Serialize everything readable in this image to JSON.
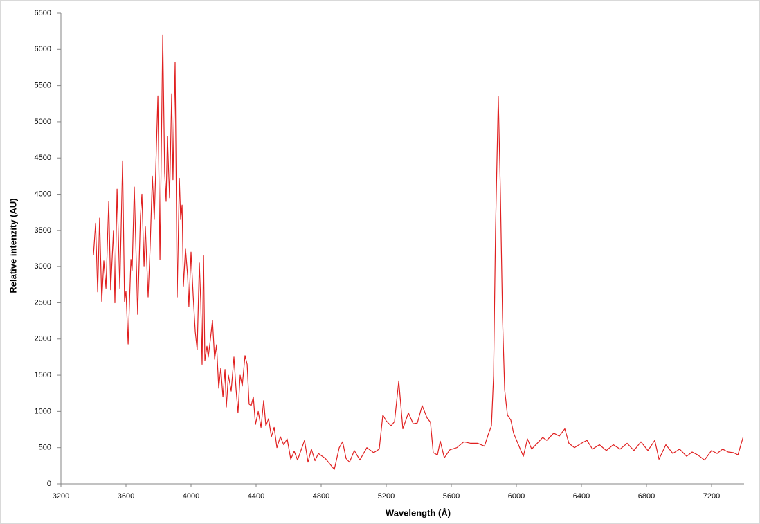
{
  "chart_data": {
    "type": "line",
    "x_label": "Wavelength (Å)",
    "y_label": "Relative intenzity (AU)",
    "xlim": [
      3200,
      7400
    ],
    "ylim": [
      0,
      6500
    ],
    "xticks": [
      3200,
      3600,
      4000,
      4400,
      4800,
      5200,
      5600,
      6000,
      6400,
      6800,
      7200
    ],
    "yticks": [
      0,
      500,
      1000,
      1500,
      2000,
      2500,
      3000,
      3500,
      4000,
      4500,
      5000,
      5500,
      6000,
      6500
    ],
    "grid": false,
    "series": [
      {
        "color": "#e02020",
        "x": [
          3400,
          3413,
          3426,
          3438,
          3451,
          3464,
          3477,
          3494,
          3506,
          3523,
          3532,
          3545,
          3562,
          3579,
          3591,
          3600,
          3613,
          3630,
          3638,
          3651,
          3672,
          3689,
          3698,
          3711,
          3719,
          3736,
          3749,
          3762,
          3774,
          3796,
          3809,
          3826,
          3838,
          3847,
          3855,
          3868,
          3881,
          3889,
          3902,
          3915,
          3928,
          3936,
          3945,
          3953,
          3966,
          3979,
          3987,
          4000,
          4013,
          4026,
          4038,
          4051,
          4060,
          4068,
          4077,
          4085,
          4098,
          4106,
          4119,
          4132,
          4145,
          4157,
          4170,
          4183,
          4196,
          4209,
          4217,
          4230,
          4247,
          4264,
          4277,
          4289,
          4302,
          4315,
          4332,
          4345,
          4357,
          4370,
          4383,
          4396,
          4413,
          4430,
          4447,
          4460,
          4477,
          4494,
          4511,
          4528,
          4549,
          4570,
          4591,
          4613,
          4634,
          4655,
          4698,
          4719,
          4740,
          4762,
          4783,
          4826,
          4881,
          4911,
          4932,
          4953,
          4974,
          5004,
          5038,
          5081,
          5123,
          5157,
          5179,
          5200,
          5230,
          5251,
          5277,
          5302,
          5336,
          5366,
          5391,
          5421,
          5451,
          5472,
          5489,
          5515,
          5532,
          5557,
          5591,
          5634,
          5677,
          5719,
          5762,
          5804,
          5830,
          5847,
          5860,
          5872,
          5889,
          5902,
          5915,
          5928,
          5945,
          5966,
          5983,
          6009,
          6043,
          6068,
          6094,
          6128,
          6162,
          6187,
          6230,
          6264,
          6298,
          6323,
          6357,
          6400,
          6434,
          6468,
          6511,
          6553,
          6596,
          6638,
          6681,
          6723,
          6766,
          6809,
          6851,
          6877,
          6919,
          6962,
          7004,
          7047,
          7081,
          7115,
          7157,
          7200,
          7234,
          7268,
          7302,
          7336,
          7362,
          7395
        ],
        "values": [
          3160,
          3600,
          2650,
          3670,
          2520,
          3080,
          2700,
          3900,
          2680,
          3500,
          2500,
          4070,
          2700,
          4460,
          2520,
          2660,
          1930,
          3100,
          2950,
          4100,
          2340,
          3700,
          4000,
          3000,
          3550,
          2580,
          3300,
          4250,
          3650,
          5360,
          3100,
          6200,
          4300,
          3900,
          4800,
          3950,
          5380,
          4200,
          5820,
          2580,
          4220,
          3650,
          3850,
          2730,
          3250,
          2870,
          2450,
          3200,
          2600,
          2100,
          1850,
          3050,
          2500,
          1650,
          3150,
          1700,
          1900,
          1750,
          2000,
          2260,
          1720,
          1920,
          1320,
          1600,
          1200,
          1580,
          1060,
          1500,
          1280,
          1750,
          1300,
          980,
          1500,
          1350,
          1770,
          1650,
          1100,
          1080,
          1200,
          820,
          1000,
          780,
          1150,
          800,
          900,
          650,
          780,
          500,
          650,
          540,
          620,
          340,
          450,
          330,
          600,
          300,
          480,
          320,
          420,
          350,
          200,
          500,
          580,
          350,
          300,
          460,
          330,
          500,
          430,
          480,
          950,
          870,
          800,
          860,
          1420,
          760,
          980,
          830,
          840,
          1080,
          910,
          850,
          430,
          400,
          590,
          360,
          470,
          500,
          580,
          560,
          560,
          520,
          700,
          800,
          1500,
          3500,
          5350,
          4000,
          2300,
          1300,
          950,
          880,
          700,
          560,
          380,
          620,
          480,
          560,
          640,
          600,
          700,
          660,
          760,
          560,
          500,
          560,
          600,
          480,
          540,
          460,
          540,
          480,
          560,
          460,
          580,
          460,
          600,
          340,
          540,
          420,
          480,
          380,
          440,
          400,
          330,
          460,
          420,
          480,
          440,
          430,
          400,
          650
        ]
      }
    ]
  }
}
